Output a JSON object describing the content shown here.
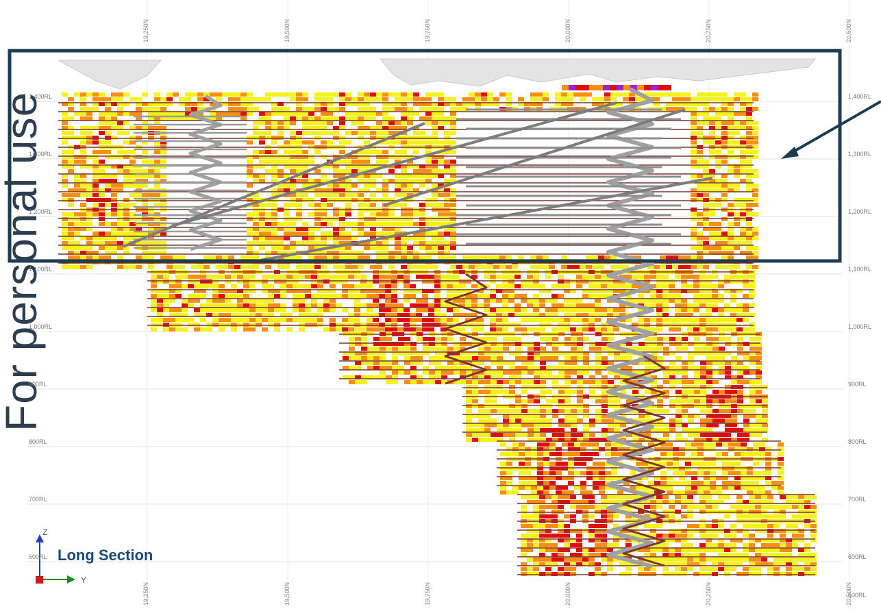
{
  "view": {
    "title": "Long Section",
    "watermark_text": "For personal use",
    "axis_labels": {
      "z": "Z",
      "y": "Y"
    },
    "highlight_color": "#1d3c52",
    "arrow_color": "#1d3c52"
  },
  "grid": {
    "rl_labels": [
      "1,400RL",
      "1,300RL",
      "1,200RL",
      "1,100RL",
      "1,000RL",
      "900RL",
      "800RL",
      "700RL",
      "600RL",
      "500RL"
    ],
    "northing_labels": [
      "19,250N",
      "19,500N",
      "19,750N",
      "20,000N",
      "20,250N",
      "20,500N"
    ]
  },
  "legend_colors": {
    "low": "#f3f21a",
    "medium": "#f98f0f",
    "high": "#e00d0d",
    "very_high": "#a022d6",
    "drive": "#7a3530",
    "decline": "#a0a0a0"
  }
}
